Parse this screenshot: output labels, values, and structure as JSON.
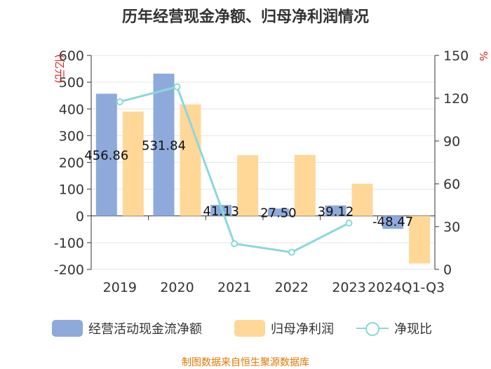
{
  "chart_data": {
    "type": "bar",
    "title": "历年经营现金净额、归母净利润情况",
    "categories": [
      "2019",
      "2020",
      "2021",
      "2022",
      "2023",
      "2024Q1-Q3"
    ],
    "series": [
      {
        "name": "经营活动现金流净额",
        "kind": "bar",
        "axis": "left",
        "color": "#8eaadb",
        "values": [
          456.86,
          531.84,
          41.13,
          27.5,
          39.12,
          -48.47
        ],
        "labels": [
          "456.86",
          "531.84",
          "41.13",
          "27.50",
          "39.12",
          "-48.47"
        ]
      },
      {
        "name": "归母净利润",
        "kind": "bar",
        "axis": "left",
        "color": "#ffd898",
        "values": [
          390,
          417,
          227,
          228,
          120,
          -178
        ],
        "labels": []
      },
      {
        "name": "净现比",
        "kind": "line",
        "axis": "right",
        "color": "#8ad8dc",
        "values": [
          117.5,
          128,
          18,
          12,
          32.5,
          null
        ]
      }
    ],
    "yleft": {
      "label": "(亿元)",
      "min": -200,
      "max": 600,
      "ticks": [
        "-200",
        "-100",
        "0",
        "100",
        "200",
        "300",
        "400",
        "500",
        "600"
      ]
    },
    "yright": {
      "label": "%",
      "min": 0,
      "max": 150,
      "ticks": [
        "0",
        "30",
        "60",
        "90",
        "120",
        "150"
      ]
    },
    "legend_position": "bottom",
    "grid": true
  },
  "source_text": "制图数据来自恒生聚源数据库",
  "colors": {
    "title": "#333333",
    "axis_label": "#e02020",
    "source": "#e07800",
    "grid": "#e6e6e6"
  }
}
